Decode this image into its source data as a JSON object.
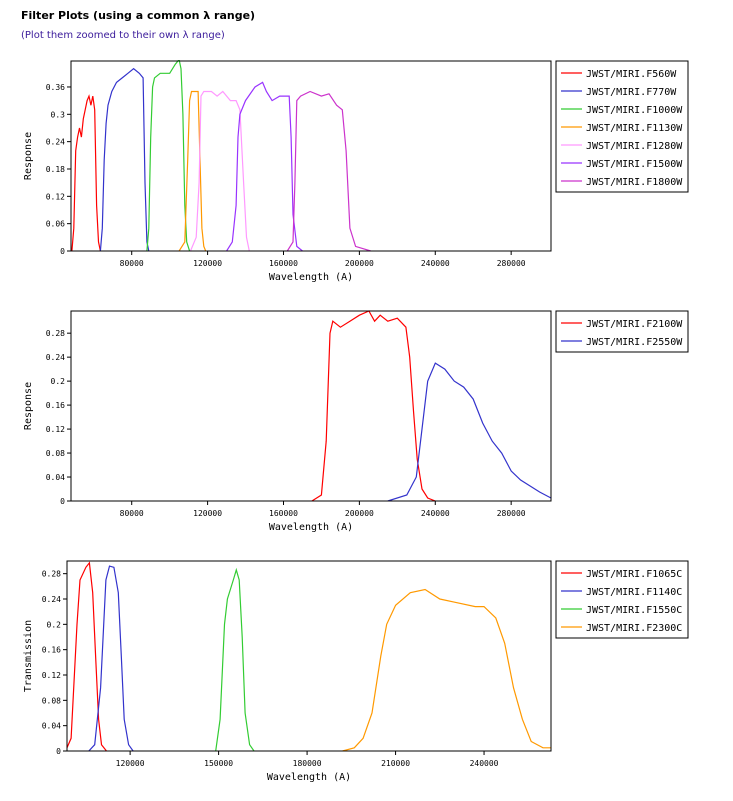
{
  "header": {
    "title": "Filter Plots (using a common λ range)",
    "zoom_link": "(Plot them zoomed to their own λ range)"
  },
  "chart_data": [
    {
      "type": "line",
      "xlabel": "Wavelength (A)",
      "ylabel": "Response",
      "xlim": [
        48000,
        301000
      ],
      "ylim": [
        0,
        0.417
      ],
      "xticks": [
        80000,
        120000,
        160000,
        200000,
        240000,
        280000
      ],
      "yticks": [
        0,
        0.06,
        0.12,
        0.18,
        0.24,
        0.3,
        0.36
      ],
      "ytick_labels": [
        "0",
        "0.06",
        "0.12",
        "0.18",
        "0.24",
        "0.3",
        "0.36"
      ],
      "legend_position": "right",
      "series": [
        {
          "name": "JWST/MIRI.F560W",
          "color": "#ff0000",
          "points": [
            [
              48500,
              0
            ],
            [
              49500,
              0.05
            ],
            [
              50500,
              0.22
            ],
            [
              51500,
              0.25
            ],
            [
              52500,
              0.27
            ],
            [
              53500,
              0.25
            ],
            [
              54500,
              0.29
            ],
            [
              55500,
              0.31
            ],
            [
              56500,
              0.33
            ],
            [
              57500,
              0.34
            ],
            [
              58500,
              0.32
            ],
            [
              59500,
              0.34
            ],
            [
              60500,
              0.31
            ],
            [
              61500,
              0.1
            ],
            [
              62500,
              0.02
            ],
            [
              63500,
              0
            ]
          ]
        },
        {
          "name": "JWST/MIRI.F770W",
          "color": "#3333cc",
          "points": [
            [
              63500,
              0
            ],
            [
              64500,
              0.05
            ],
            [
              65500,
              0.2
            ],
            [
              66500,
              0.28
            ],
            [
              67500,
              0.32
            ],
            [
              69500,
              0.35
            ],
            [
              72000,
              0.37
            ],
            [
              75000,
              0.38
            ],
            [
              78000,
              0.39
            ],
            [
              81000,
              0.4
            ],
            [
              84000,
              0.39
            ],
            [
              86000,
              0.38
            ],
            [
              87000,
              0.15
            ],
            [
              88000,
              0.02
            ],
            [
              89000,
              0
            ]
          ]
        },
        {
          "name": "JWST/MIRI.F1000W",
          "color": "#33cc33",
          "points": [
            [
              88000,
              0
            ],
            [
              89000,
              0.05
            ],
            [
              90000,
              0.25
            ],
            [
              91000,
              0.36
            ],
            [
              92000,
              0.38
            ],
            [
              95000,
              0.39
            ],
            [
              100000,
              0.39
            ],
            [
              103000,
              0.41
            ],
            [
              105000,
              0.42
            ],
            [
              106000,
              0.4
            ],
            [
              107000,
              0.3
            ],
            [
              108000,
              0.1
            ],
            [
              109000,
              0.02
            ],
            [
              110500,
              0
            ]
          ]
        },
        {
          "name": "JWST/MIRI.F1130W",
          "color": "#ff9900",
          "points": [
            [
              105000,
              0
            ],
            [
              108000,
              0.02
            ],
            [
              109500,
              0.2
            ],
            [
              110500,
              0.33
            ],
            [
              111500,
              0.35
            ],
            [
              115000,
              0.35
            ],
            [
              116000,
              0.2
            ],
            [
              117000,
              0.05
            ],
            [
              118000,
              0.01
            ],
            [
              119000,
              0
            ]
          ]
        },
        {
          "name": "JWST/MIRI.F1280W",
          "color": "#ff99ff",
          "points": [
            [
              111000,
              0
            ],
            [
              114000,
              0.03
            ],
            [
              115500,
              0.15
            ],
            [
              116500,
              0.34
            ],
            [
              118000,
              0.35
            ],
            [
              122000,
              0.35
            ],
            [
              125000,
              0.34
            ],
            [
              128000,
              0.35
            ],
            [
              132000,
              0.33
            ],
            [
              135000,
              0.33
            ],
            [
              137000,
              0.31
            ],
            [
              139000,
              0.15
            ],
            [
              140500,
              0.03
            ],
            [
              142000,
              0
            ]
          ]
        },
        {
          "name": "JWST/MIRI.F1500W",
          "color": "#9933ff",
          "points": [
            [
              130000,
              0
            ],
            [
              133000,
              0.02
            ],
            [
              135000,
              0.1
            ],
            [
              136000,
              0.25
            ],
            [
              137000,
              0.3
            ],
            [
              140000,
              0.33
            ],
            [
              145000,
              0.36
            ],
            [
              149000,
              0.37
            ],
            [
              151000,
              0.35
            ],
            [
              154000,
              0.33
            ],
            [
              158000,
              0.34
            ],
            [
              163000,
              0.34
            ],
            [
              164000,
              0.25
            ],
            [
              165000,
              0.08
            ],
            [
              167000,
              0.01
            ],
            [
              170000,
              0
            ]
          ]
        },
        {
          "name": "JWST/MIRI.F1800W",
          "color": "#cc33cc",
          "points": [
            [
              162000,
              0
            ],
            [
              165000,
              0.02
            ],
            [
              166000,
              0.15
            ],
            [
              167000,
              0.33
            ],
            [
              169000,
              0.34
            ],
            [
              174000,
              0.35
            ],
            [
              180000,
              0.34
            ],
            [
              184000,
              0.345
            ],
            [
              188000,
              0.32
            ],
            [
              191000,
              0.31
            ],
            [
              193000,
              0.22
            ],
            [
              195000,
              0.05
            ],
            [
              198000,
              0.01
            ],
            [
              206000,
              0
            ]
          ]
        }
      ]
    },
    {
      "type": "line",
      "xlabel": "Wavelength (A)",
      "ylabel": "Response",
      "xlim": [
        48000,
        301000
      ],
      "ylim": [
        0,
        0.317
      ],
      "xticks": [
        80000,
        120000,
        160000,
        200000,
        240000,
        280000
      ],
      "yticks": [
        0,
        0.04,
        0.08,
        0.12,
        0.16,
        0.2,
        0.24,
        0.28
      ],
      "ytick_labels": [
        "0",
        "0.04",
        "0.08",
        "0.12",
        "0.16",
        "0.2",
        "0.24",
        "0.28"
      ],
      "legend_position": "right",
      "series": [
        {
          "name": "JWST/MIRI.F2100W",
          "color": "#ff0000",
          "points": [
            [
              175000,
              0
            ],
            [
              180000,
              0.01
            ],
            [
              182500,
              0.1
            ],
            [
              184500,
              0.28
            ],
            [
              186000,
              0.3
            ],
            [
              190000,
              0.29
            ],
            [
              195000,
              0.3
            ],
            [
              200000,
              0.31
            ],
            [
              205000,
              0.317
            ],
            [
              208000,
              0.3
            ],
            [
              211000,
              0.31
            ],
            [
              215000,
              0.3
            ],
            [
              220000,
              0.305
            ],
            [
              224500,
              0.29
            ],
            [
              226500,
              0.24
            ],
            [
              228500,
              0.15
            ],
            [
              230500,
              0.07
            ],
            [
              233000,
              0.02
            ],
            [
              236000,
              0.005
            ],
            [
              240000,
              0
            ]
          ]
        },
        {
          "name": "JWST/MIRI.F2550W",
          "color": "#3333cc",
          "points": [
            [
              215000,
              0
            ],
            [
              225000,
              0.01
            ],
            [
              230000,
              0.04
            ],
            [
              233000,
              0.12
            ],
            [
              236000,
              0.2
            ],
            [
              240000,
              0.23
            ],
            [
              245000,
              0.22
            ],
            [
              250000,
              0.2
            ],
            [
              255000,
              0.19
            ],
            [
              260000,
              0.17
            ],
            [
              265000,
              0.13
            ],
            [
              270000,
              0.1
            ],
            [
              275000,
              0.08
            ],
            [
              280000,
              0.05
            ],
            [
              285000,
              0.035
            ],
            [
              290000,
              0.025
            ],
            [
              295000,
              0.015
            ],
            [
              301000,
              0.005
            ]
          ]
        }
      ]
    },
    {
      "type": "line",
      "xlabel": "Wavelength (A)",
      "ylabel": "Transmission",
      "xlim": [
        98600,
        262700
      ],
      "ylim": [
        0,
        0.3
      ],
      "xticks": [
        120000,
        150000,
        180000,
        210000,
        240000
      ],
      "yticks": [
        0,
        0.04,
        0.08,
        0.12,
        0.16,
        0.2,
        0.24,
        0.28
      ],
      "ytick_labels": [
        "0",
        "0.04",
        "0.08",
        "0.12",
        "0.16",
        "0.2",
        "0.24",
        "0.28"
      ],
      "legend_position": "right",
      "series": [
        {
          "name": "JWST/MIRI.F1065C",
          "color": "#ff0000",
          "points": [
            [
              98600,
              0.005
            ],
            [
              100000,
              0.02
            ],
            [
              102000,
              0.2
            ],
            [
              103000,
              0.27
            ],
            [
              105000,
              0.29
            ],
            [
              106200,
              0.297
            ],
            [
              107300,
              0.25
            ],
            [
              108300,
              0.15
            ],
            [
              109300,
              0.05
            ],
            [
              110300,
              0.01
            ],
            [
              112000,
              0
            ]
          ]
        },
        {
          "name": "JWST/MIRI.F1140C",
          "color": "#3333cc",
          "points": [
            [
              106000,
              0
            ],
            [
              108000,
              0.01
            ],
            [
              110000,
              0.1
            ],
            [
              111800,
              0.27
            ],
            [
              113000,
              0.292
            ],
            [
              114500,
              0.29
            ],
            [
              116000,
              0.25
            ],
            [
              117000,
              0.15
            ],
            [
              118000,
              0.05
            ],
            [
              119500,
              0.01
            ],
            [
              121000,
              0
            ]
          ]
        },
        {
          "name": "JWST/MIRI.F1550C",
          "color": "#33cc33",
          "points": [
            [
              149000,
              0
            ],
            [
              150500,
              0.05
            ],
            [
              152000,
              0.2
            ],
            [
              153000,
              0.24
            ],
            [
              155000,
              0.27
            ],
            [
              156000,
              0.286
            ],
            [
              157000,
              0.27
            ],
            [
              158000,
              0.18
            ],
            [
              159000,
              0.06
            ],
            [
              160500,
              0.01
            ],
            [
              162000,
              0
            ]
          ]
        },
        {
          "name": "JWST/MIRI.F2300C",
          "color": "#ff9900",
          "points": [
            [
              192000,
              0
            ],
            [
              196000,
              0.005
            ],
            [
              199000,
              0.02
            ],
            [
              202000,
              0.06
            ],
            [
              205000,
              0.15
            ],
            [
              207000,
              0.2
            ],
            [
              210000,
              0.23
            ],
            [
              215000,
              0.25
            ],
            [
              220000,
              0.255
            ],
            [
              225000,
              0.24
            ],
            [
              230000,
              0.235
            ],
            [
              237000,
              0.228
            ],
            [
              240000,
              0.228
            ],
            [
              244000,
              0.21
            ],
            [
              247000,
              0.17
            ],
            [
              250000,
              0.1
            ],
            [
              253000,
              0.05
            ],
            [
              256000,
              0.015
            ],
            [
              260000,
              0.005
            ],
            [
              262700,
              0.005
            ]
          ]
        }
      ]
    }
  ]
}
